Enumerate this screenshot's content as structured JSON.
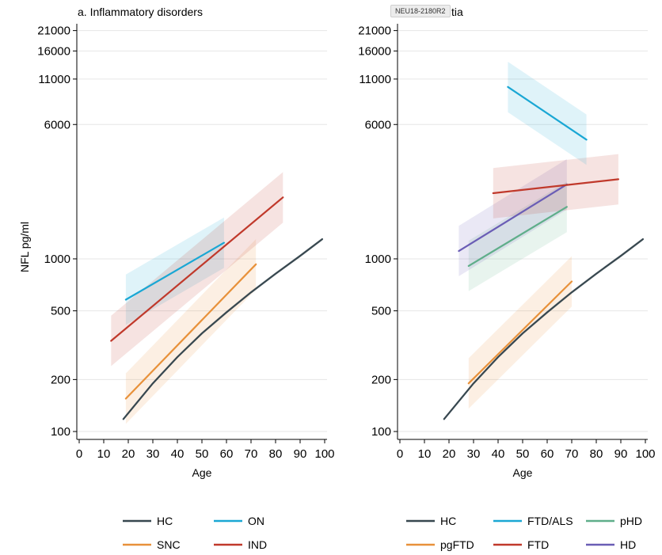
{
  "ylabel": "NFL pg/ml",
  "tag": "NEU18-2180R2",
  "colors": {
    "HC": "#37474f",
    "ON": "#1aa7d4",
    "SNC": "#e8913a",
    "IND": "#c0392b",
    "FTD/ALS": "#1aa7d4",
    "pgFTD": "#e8913a",
    "FTD": "#c0392b",
    "pHD": "#5fae8a",
    "HD": "#6a5db5"
  },
  "chart_data": [
    {
      "type": "line",
      "title": "a. Inflammatory disorders",
      "xlabel": "Age",
      "ylabel": "NFL pg/ml",
      "yscale": "log",
      "xlim": [
        0,
        100
      ],
      "ylim": [
        90,
        23000
      ],
      "xticks": [
        0,
        10,
        20,
        30,
        40,
        50,
        60,
        70,
        80,
        90,
        100
      ],
      "yticks": [
        100,
        200,
        500,
        1000,
        6000,
        11000,
        16000,
        21000
      ],
      "grid": true,
      "legend": "bottom",
      "legend_order": [
        "HC",
        "ON",
        "SNC",
        "IND"
      ],
      "series": [
        {
          "name": "HC",
          "x": [
            18,
            30,
            40,
            50,
            60,
            70,
            80,
            90,
            99
          ],
          "y": [
            118,
            190,
            270,
            370,
            490,
            640,
            820,
            1040,
            1300
          ]
        },
        {
          "name": "SNC",
          "x": [
            19,
            72
          ],
          "y": [
            155,
            930
          ]
        },
        {
          "name": "ON",
          "x": [
            19,
            59
          ],
          "y": [
            580,
            1240
          ]
        },
        {
          "name": "IND",
          "x": [
            13,
            83
          ],
          "y": [
            335,
            2270
          ]
        }
      ]
    },
    {
      "type": "line",
      "title": "tia",
      "xlabel": "Age",
      "yscale": "log",
      "xlim": [
        0,
        100
      ],
      "ylim": [
        90,
        23000
      ],
      "xticks": [
        0,
        10,
        20,
        30,
        40,
        50,
        60,
        70,
        80,
        90,
        100
      ],
      "yticks": [
        100,
        200,
        500,
        1000,
        6000,
        11000,
        16000,
        21000
      ],
      "grid": true,
      "legend": "bottom",
      "legend_order": [
        "HC",
        "FTD/ALS",
        "pHD",
        "pgFTD",
        "FTD",
        "HD"
      ],
      "series": [
        {
          "name": "HC",
          "x": [
            18,
            30,
            40,
            50,
            60,
            70,
            80,
            90,
            99
          ],
          "y": [
            118,
            190,
            270,
            370,
            490,
            640,
            820,
            1040,
            1300
          ]
        },
        {
          "name": "pgFTD",
          "x": [
            28,
            70
          ],
          "y": [
            190,
            740
          ]
        },
        {
          "name": "pHD",
          "x": [
            28,
            68
          ],
          "y": [
            910,
            2000
          ]
        },
        {
          "name": "HD",
          "x": [
            24,
            68
          ],
          "y": [
            1110,
            2700
          ]
        },
        {
          "name": "FTD",
          "x": [
            38,
            89
          ],
          "y": [
            2400,
            2890
          ]
        },
        {
          "name": "FTD/ALS",
          "x": [
            44,
            76
          ],
          "y": [
            9900,
            4900
          ]
        }
      ]
    }
  ]
}
